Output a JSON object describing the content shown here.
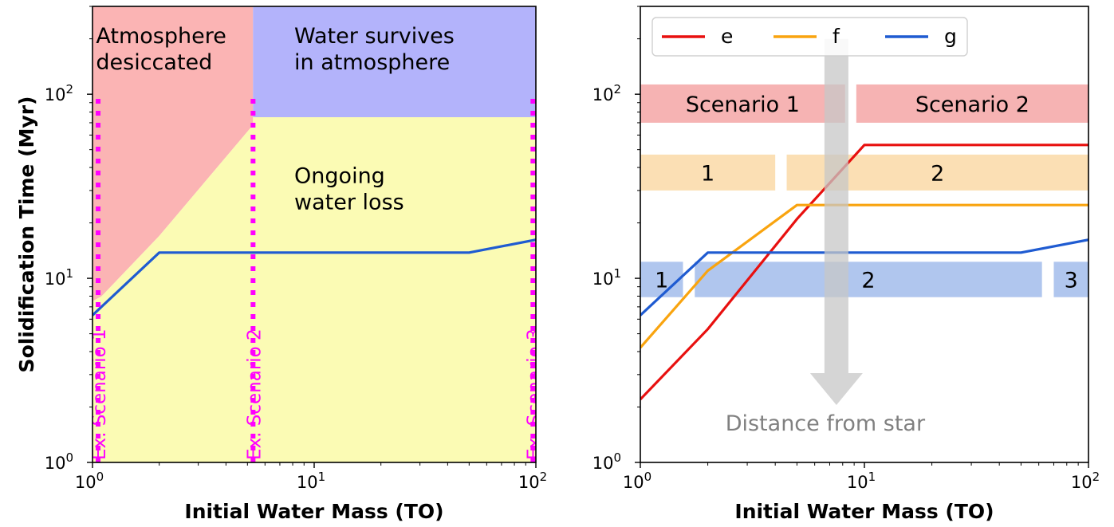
{
  "chart_data": [
    {
      "type": "area",
      "xlabel": "Initial Water Mass (TO)",
      "ylabel": "Solidification Time (Myr)",
      "xscale": "log",
      "yscale": "log",
      "xlim": [
        1,
        100
      ],
      "ylim": [
        1,
        300
      ],
      "xticks": [
        {
          "v": 1,
          "b": "10",
          "e": "0"
        },
        {
          "v": 10,
          "b": "10",
          "e": "1"
        },
        {
          "v": 100,
          "b": "10",
          "e": "2"
        }
      ],
      "yticks": [
        {
          "v": 1,
          "b": "10",
          "e": "0"
        },
        {
          "v": 10,
          "b": "10",
          "e": "1"
        },
        {
          "v": 100,
          "b": "10",
          "e": "2"
        }
      ],
      "regions": [
        {
          "label_lines": [
            "Atmosphere",
            "desiccated"
          ],
          "color": "#fbb4b4",
          "polygon": [
            [
              1,
              300
            ],
            [
              5.3,
              300
            ],
            [
              5.3,
              68
            ],
            [
              2.0,
              17
            ],
            [
              1.1,
              8.0
            ],
            [
              1,
              7.5
            ]
          ],
          "label_at": [
            1.02,
            190
          ]
        },
        {
          "label_lines": [
            "Water survives",
            "in atmosphere"
          ],
          "color": "#b3b3fb",
          "polygon": [
            [
              5.3,
              300
            ],
            [
              100,
              300
            ],
            [
              100,
              75
            ],
            [
              5.3,
              75
            ]
          ],
          "label_at": [
            8.0,
            190
          ]
        },
        {
          "label_lines": [
            "Ongoing",
            "water loss"
          ],
          "color": "#fbfbb4",
          "polygon": [
            [
              1,
              1
            ],
            [
              100,
              1
            ],
            [
              100,
              75
            ],
            [
              5.3,
              75
            ],
            [
              5.3,
              68
            ],
            [
              2.0,
              17
            ],
            [
              1.1,
              8.0
            ],
            [
              1,
              7.5
            ]
          ],
          "label_at": [
            8.0,
            33
          ]
        }
      ],
      "series": [
        {
          "color": "#1f5bd1",
          "points": [
            [
              1.0,
              6.3
            ],
            [
              2.0,
              13.8
            ],
            [
              50,
              13.8
            ],
            [
              100,
              16.2
            ]
          ]
        }
      ],
      "markers": [
        {
          "label": "Ex. Scenario 1",
          "x": 1.06
        },
        {
          "label": "Ex. Scenario 2",
          "x": 5.3
        },
        {
          "label": "Ex. Scenario 3",
          "x": 97
        }
      ],
      "marker_color": "#ff00ff"
    },
    {
      "type": "line",
      "xlabel": "Initial Water Mass (TO)",
      "ylabel": "",
      "xscale": "log",
      "yscale": "log",
      "xlim": [
        1,
        100
      ],
      "ylim": [
        1,
        300
      ],
      "xticks": [
        {
          "v": 1,
          "b": "10",
          "e": "0"
        },
        {
          "v": 10,
          "b": "10",
          "e": "1"
        },
        {
          "v": 100,
          "b": "10",
          "e": "2"
        }
      ],
      "yticks": [
        {
          "v": 1,
          "b": "10",
          "e": "0"
        },
        {
          "v": 10,
          "b": "10",
          "e": "1"
        },
        {
          "v": 100,
          "b": "10",
          "e": "2"
        }
      ],
      "series": [
        {
          "name": "e",
          "color": "#e8100f",
          "points": [
            [
              1.0,
              2.2
            ],
            [
              2.0,
              5.3
            ],
            [
              5.0,
              21
            ],
            [
              10,
              53
            ],
            [
              100,
              53
            ]
          ]
        },
        {
          "name": "f",
          "color": "#f9a40f",
          "points": [
            [
              1.0,
              4.2
            ],
            [
              2.0,
              11
            ],
            [
              5.0,
              25
            ],
            [
              100,
              25
            ]
          ]
        },
        {
          "name": "g",
          "color": "#1f5bd1",
          "points": [
            [
              1.0,
              6.3
            ],
            [
              2.0,
              13.8
            ],
            [
              50,
              13.8
            ],
            [
              100,
              16.2
            ]
          ]
        }
      ],
      "legend": "upper-left",
      "bands": [
        {
          "label": "Scenario 1",
          "color": "#f6b3b3",
          "x0": 1.0,
          "x1": 8.2,
          "y0": 70,
          "y1": 113
        },
        {
          "label": "Scenario 2",
          "color": "#f6b3b3",
          "x0": 9.2,
          "x1": 100,
          "y0": 70,
          "y1": 113
        },
        {
          "label": "1",
          "color": "#fbdfb4",
          "x0": 1.0,
          "x1": 4.0,
          "y0": 30,
          "y1": 47
        },
        {
          "label": "2",
          "color": "#fbdfb4",
          "x0": 4.5,
          "x1": 100,
          "y0": 30,
          "y1": 47
        },
        {
          "label": "1",
          "color": "#b0c6ee",
          "x0": 1.0,
          "x1": 1.55,
          "y0": 7.9,
          "y1": 12.3
        },
        {
          "label": "2",
          "color": "#b0c6ee",
          "x0": 1.75,
          "x1": 62,
          "y0": 7.9,
          "y1": 12.3
        },
        {
          "label": "3",
          "color": "#b0c6ee",
          "x0": 70,
          "x1": 100,
          "y0": 7.9,
          "y1": 12.3
        }
      ],
      "arrow": {
        "label": "Distance from star",
        "color": "#c7c7c7",
        "x": 7.5,
        "y_start": 200,
        "y_end": 2.05
      }
    }
  ]
}
